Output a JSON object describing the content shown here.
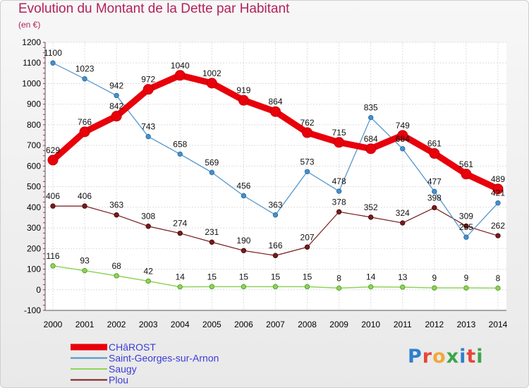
{
  "chart_data": {
    "type": "line",
    "title": "Evolution du Montant de la Dette par Habitant",
    "subtitle": "(en €)",
    "xlabel": "",
    "ylabel": "",
    "x": [
      "2000",
      "2001",
      "2002",
      "2003",
      "2004",
      "2005",
      "2006",
      "2007",
      "2008",
      "2009",
      "2010",
      "2011",
      "2012",
      "2013",
      "2014"
    ],
    "ylim": [
      -100,
      1200
    ],
    "yticks": [
      -100,
      0,
      100,
      200,
      300,
      400,
      500,
      600,
      700,
      800,
      900,
      1000,
      1100,
      1200
    ],
    "grid": true,
    "legend_position": "bottom-left",
    "series": [
      {
        "name": "CHâROST",
        "color": "#e8000b",
        "values": [
          629,
          766,
          842,
          972,
          1040,
          1002,
          919,
          864,
          762,
          715,
          684,
          749,
          661,
          561,
          489
        ]
      },
      {
        "name": "Saint-Georges-sur-Arnon",
        "color": "#4a90c8",
        "values": [
          1100,
          1023,
          942,
          743,
          658,
          569,
          456,
          363,
          573,
          478,
          835,
          684,
          477,
          255,
          421
        ]
      },
      {
        "name": "Saugy",
        "color": "#8fd45a",
        "values": [
          116,
          93,
          68,
          42,
          14,
          15,
          15,
          15,
          15,
          8,
          14,
          13,
          9,
          9,
          8
        ]
      },
      {
        "name": "Plou",
        "color": "#7a1a1a",
        "values": [
          406,
          406,
          363,
          308,
          274,
          231,
          190,
          166,
          207,
          378,
          352,
          324,
          398,
          309,
          262
        ]
      }
    ]
  },
  "logo": [
    "P",
    "r",
    "o",
    "x",
    "i",
    "t",
    "i"
  ]
}
